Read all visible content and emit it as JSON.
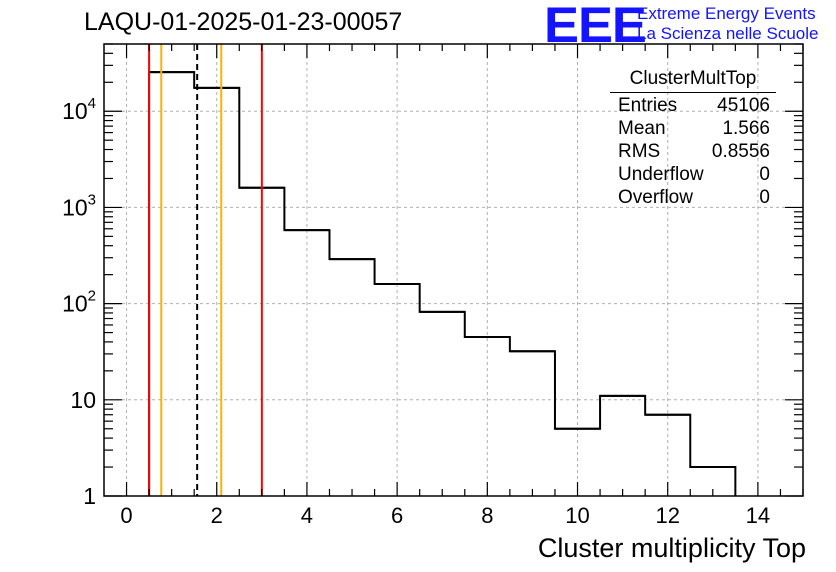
{
  "title": "LAQU-01-2025-01-23-00057",
  "logo": {
    "mark": "EEE",
    "line1": "Extreme Energy Events",
    "line2": "La Scienza nelle Scuole",
    "color": "#1414ff"
  },
  "stats": {
    "name": "ClusterMultTop",
    "rows": [
      {
        "label": "Entries",
        "value": "45106"
      },
      {
        "label": "Mean",
        "value": "1.566"
      },
      {
        "label": "RMS",
        "value": "0.8556"
      },
      {
        "label": "Underflow",
        "value": "0"
      },
      {
        "label": "Overflow",
        "value": "0"
      }
    ]
  },
  "chart_data": {
    "type": "histogram",
    "title": "LAQU-01-2025-01-23-00057",
    "xlabel": "Cluster multiplicity Top",
    "ylabel": "",
    "xlim": [
      -0.5,
      15.0
    ],
    "ylim": [
      1,
      50000
    ],
    "yscale": "log",
    "grid": true,
    "bins": [
      {
        "low": 0.5,
        "high": 1.5,
        "count": 25500
      },
      {
        "low": 1.5,
        "high": 2.5,
        "count": 17500
      },
      {
        "low": 2.5,
        "high": 3.5,
        "count": 1600
      },
      {
        "low": 3.5,
        "high": 4.5,
        "count": 580
      },
      {
        "low": 4.5,
        "high": 5.5,
        "count": 290
      },
      {
        "low": 5.5,
        "high": 6.5,
        "count": 160
      },
      {
        "low": 6.5,
        "high": 7.5,
        "count": 82
      },
      {
        "low": 7.5,
        "high": 8.5,
        "count": 45
      },
      {
        "low": 8.5,
        "high": 9.5,
        "count": 32
      },
      {
        "low": 9.5,
        "high": 10.5,
        "count": 5
      },
      {
        "low": 10.5,
        "high": 11.5,
        "count": 11
      },
      {
        "low": 11.5,
        "high": 12.5,
        "count": 7
      },
      {
        "low": 12.5,
        "high": 13.5,
        "count": 2
      }
    ],
    "x_ticks": [
      0,
      2,
      4,
      6,
      8,
      10,
      12,
      14
    ],
    "y_ticks": [
      {
        "value": 1,
        "base": "1",
        "exp": ""
      },
      {
        "value": 10,
        "base": "10",
        "exp": ""
      },
      {
        "value": 100,
        "base": "10",
        "exp": "2"
      },
      {
        "value": 1000,
        "base": "10",
        "exp": "3"
      },
      {
        "value": 10000,
        "base": "10",
        "exp": "4"
      }
    ],
    "vertical_lines": [
      {
        "x": 0.5,
        "color": "#ff0000",
        "style": "solid"
      },
      {
        "x": 0.77,
        "color": "#ffb000",
        "style": "solid"
      },
      {
        "x": 1.566,
        "color": "#000000",
        "style": "dashed"
      },
      {
        "x": 2.1,
        "color": "#ffb000",
        "style": "solid"
      },
      {
        "x": 3.0,
        "color": "#ff0000",
        "style": "solid"
      }
    ]
  }
}
